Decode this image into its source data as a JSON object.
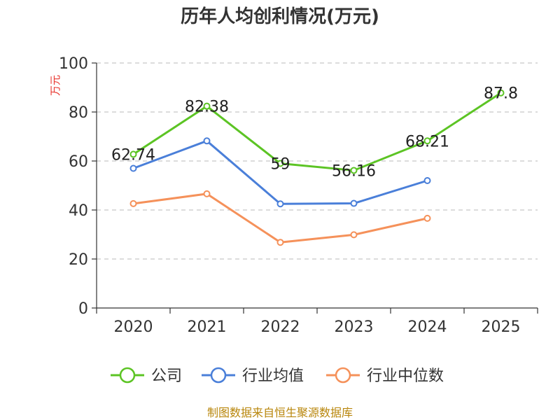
{
  "chart_data": {
    "type": "line",
    "title": "历年人均创利情况(万元)",
    "ylabel": "万元",
    "xlabel": "",
    "categories": [
      "2020",
      "2021",
      "2022",
      "2023",
      "2024",
      "2025"
    ],
    "ylim": [
      0,
      100
    ],
    "yticks": [
      0,
      20,
      40,
      60,
      80,
      100
    ],
    "grid": true,
    "legend_position": "bottom",
    "series": [
      {
        "name": "公司",
        "color": "#5cc424",
        "values": [
          62.74,
          82.38,
          59,
          56.16,
          68.21,
          87.8
        ],
        "labels": [
          "62.74",
          "82.38",
          "59",
          "56.16",
          "68.21",
          "87.8"
        ]
      },
      {
        "name": "行业均值",
        "color": "#4a7fd9",
        "values": [
          57,
          68.2,
          42.5,
          42.7,
          52,
          null
        ]
      },
      {
        "name": "行业中位数",
        "color": "#f5915a",
        "values": [
          42.6,
          46.6,
          26.8,
          29.9,
          36.6,
          null
        ]
      }
    ],
    "source": "制图数据来自恒生聚源数据库"
  }
}
